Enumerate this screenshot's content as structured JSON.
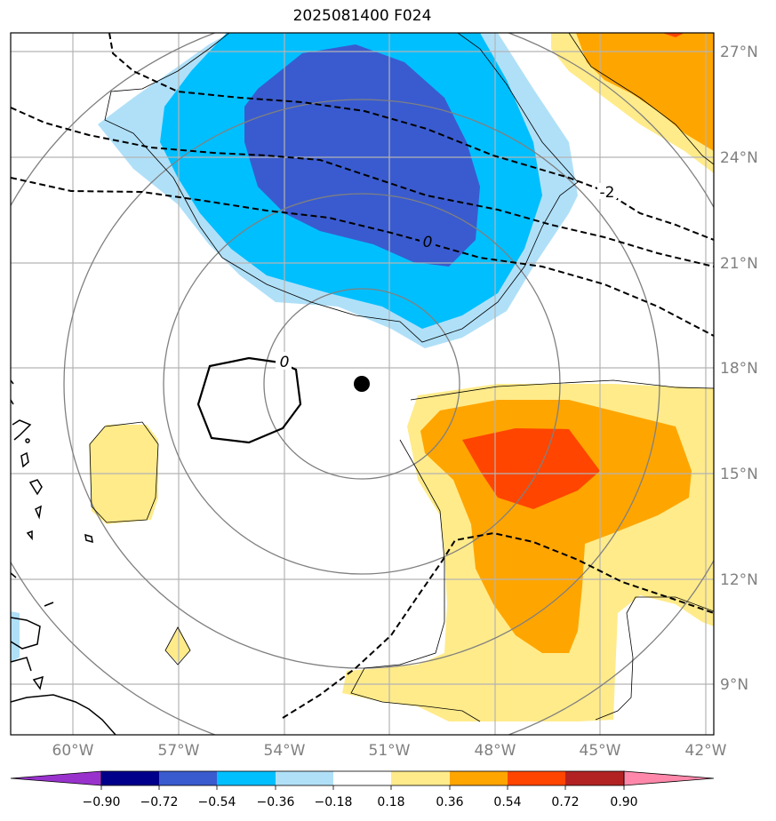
{
  "title": "2025081400 F024",
  "lat_labels": [
    "27°N",
    "24°N",
    "21°N",
    "18°N",
    "15°N",
    "12°N",
    "9°N"
  ],
  "lon_labels": [
    "60°W",
    "57°W",
    "54°W",
    "51°W",
    "48°W",
    "45°W",
    "42°W"
  ],
  "colorbar": {
    "ticks": [
      "−0.90",
      "−0.72",
      "−0.54",
      "−0.36",
      "−0.18",
      "0.18",
      "0.36",
      "0.54",
      "0.72",
      "0.90"
    ],
    "colors": [
      "#9932cc",
      "#00008b",
      "#3a5bcf",
      "#00bfff",
      "#b0e0f8",
      "#ffffff",
      "#ffeb8a",
      "#ffa500",
      "#ff4500",
      "#b22222",
      "#ff88aa"
    ]
  },
  "contour_labels": [
    "-2",
    "0",
    "0"
  ],
  "fill_colors": {
    "dark_blue": "#3a5bcf",
    "blue": "#00bfff",
    "light_blue": "#b0e0f8",
    "yellow": "#ffeb8a",
    "orange": "#ffa500",
    "red_orange": "#ff4500"
  },
  "storm_center": {
    "lat": 17.5,
    "lon": -51.7
  }
}
